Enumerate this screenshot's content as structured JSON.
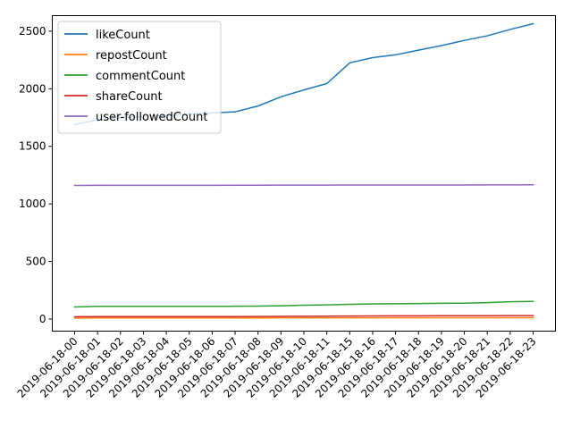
{
  "chart_data": {
    "type": "line",
    "title": "",
    "xlabel": "",
    "ylabel": "",
    "categories": [
      "2019-06-18-00",
      "2019-06-18-01",
      "2019-06-18-02",
      "2019-06-18-03",
      "2019-06-18-04",
      "2019-06-18-05",
      "2019-06-18-06",
      "2019-06-18-07",
      "2019-06-18-08",
      "2019-06-18-09",
      "2019-06-18-10",
      "2019-06-18-11",
      "2019-06-18-15",
      "2019-06-18-16",
      "2019-06-18-17",
      "2019-06-18-18",
      "2019-06-18-19",
      "2019-06-18-20",
      "2019-06-18-21",
      "2019-06-18-22",
      "2019-06-18-23"
    ],
    "ylim": [
      -105,
      2635
    ],
    "yticks": [
      0,
      500,
      1000,
      1500,
      2000,
      2500
    ],
    "grid": false,
    "legend_position": "top-left",
    "series": [
      {
        "name": "likeCount",
        "color": "#1f77b4",
        "values": [
          1690,
          1730,
          1750,
          1760,
          1770,
          1780,
          1790,
          1800,
          1850,
          1930,
          1990,
          2045,
          2225,
          2270,
          2295,
          2335,
          2375,
          2420,
          2460,
          2515,
          2565
        ]
      },
      {
        "name": "repostCount",
        "color": "#ff7f0e",
        "values": [
          8,
          9,
          9,
          9,
          9,
          9,
          9,
          9,
          9,
          10,
          10,
          10,
          10,
          10,
          11,
          11,
          11,
          11,
          11,
          11,
          11
        ]
      },
      {
        "name": "commentCount",
        "color": "#2ca02c",
        "values": [
          105,
          110,
          110,
          110,
          110,
          110,
          110,
          111,
          112,
          115,
          120,
          123,
          128,
          132,
          133,
          135,
          137,
          138,
          142,
          150,
          153
        ]
      },
      {
        "name": "shareCount",
        "color": "#d62728",
        "values": [
          20,
          21,
          21,
          21,
          21,
          21,
          21,
          21,
          22,
          23,
          24,
          25,
          26,
          27,
          28,
          28,
          29,
          29,
          29,
          30,
          30
        ]
      },
      {
        "name": "user-followedCount",
        "color": "#9467bd",
        "values": [
          1160,
          1161,
          1161,
          1161,
          1161,
          1161,
          1161,
          1162,
          1162,
          1163,
          1163,
          1163,
          1164,
          1164,
          1164,
          1164,
          1164,
          1164,
          1165,
          1165,
          1166
        ]
      }
    ]
  }
}
